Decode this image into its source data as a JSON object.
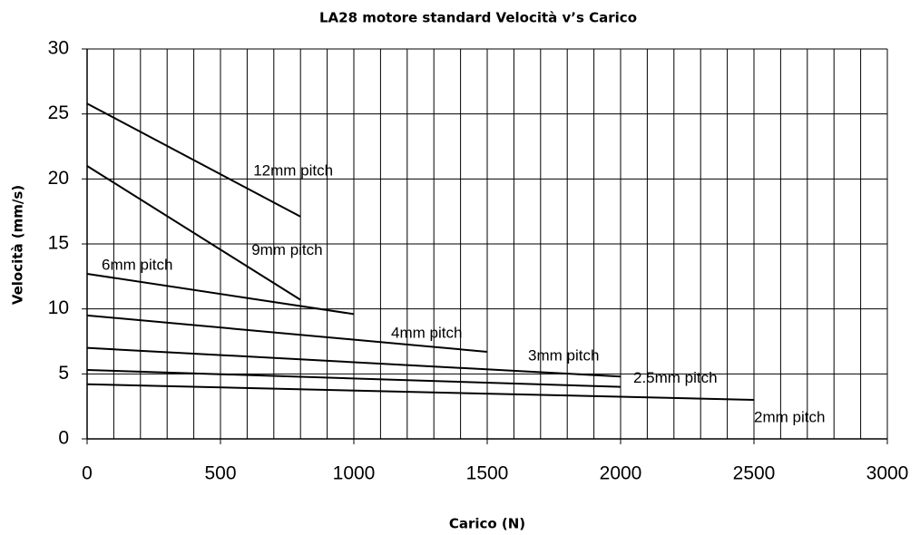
{
  "chart_data": {
    "type": "line",
    "title": "LA28 motore standard Velocità v’s Carico",
    "xlabel": "Carico (N)",
    "ylabel": "Velocità (mm/s)",
    "xlim": [
      0,
      3000
    ],
    "xticks": [
      0,
      500,
      1000,
      1500,
      2000,
      2500,
      3000
    ],
    "xminorticks": [
      100,
      200,
      300,
      400,
      600,
      700,
      800,
      900,
      1100,
      1200,
      1300,
      1400,
      1600,
      1700,
      1800,
      1900,
      2100,
      2200,
      2300,
      2400,
      2600,
      2700,
      2800,
      2900
    ],
    "ylim": [
      0,
      30
    ],
    "yticks": [
      0,
      5,
      10,
      15,
      20,
      25,
      30
    ],
    "grid": true,
    "series": [
      {
        "name": "12mm pitch",
        "color": "#000000",
        "x": [
          0,
          800
        ],
        "values": [
          25.8,
          17.1
        ]
      },
      {
        "name": "9mm pitch",
        "color": "#000000",
        "x": [
          0,
          800
        ],
        "values": [
          21,
          10.7
        ]
      },
      {
        "name": "6mm pitch",
        "color": "#000000",
        "x": [
          0,
          1000
        ],
        "values": [
          12.7,
          9.6
        ]
      },
      {
        "name": "4mm pitch",
        "color": "#000000",
        "x": [
          0,
          1500
        ],
        "values": [
          9.5,
          6.7
        ]
      },
      {
        "name": "3mm pitch",
        "color": "#000000",
        "x": [
          0,
          2000
        ],
        "values": [
          7,
          4.8
        ]
      },
      {
        "name": "2.5mm pitch",
        "color": "#000000",
        "x": [
          0,
          2000
        ],
        "values": [
          5.3,
          4
        ]
      },
      {
        "name": "2mm pitch",
        "color": "#000000",
        "x": [
          0,
          2500
        ],
        "values": [
          4.2,
          3
        ]
      }
    ]
  }
}
